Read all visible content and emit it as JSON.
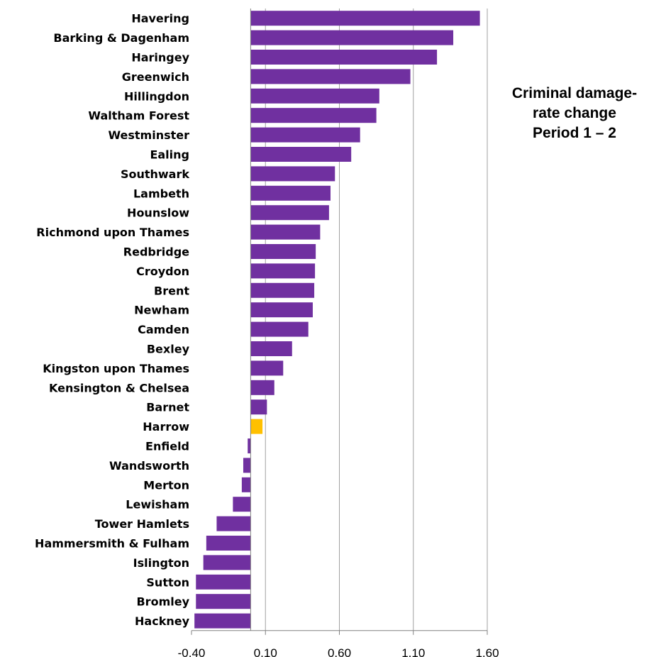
{
  "chart_data": {
    "type": "bar",
    "orientation": "horizontal",
    "title_lines": [
      "Criminal damage-",
      "rate change",
      "Period 1 – 2"
    ],
    "xlabel": "",
    "ylabel": "",
    "xlim": [
      -0.4,
      1.6
    ],
    "x_ticks": [
      -0.4,
      0.1,
      0.6,
      1.1,
      1.6
    ],
    "x_tick_labels": [
      "-0.40",
      "0.10",
      "0.60",
      "1.10",
      "1.60"
    ],
    "grid": "vertical",
    "categories": [
      "Havering",
      "Barking & Dagenham",
      "Haringey",
      "Greenwich",
      "Hillingdon",
      "Waltham Forest",
      "Westminster",
      "Ealing",
      "Southwark",
      "Lambeth",
      "Hounslow",
      "Richmond upon Thames",
      "Redbridge",
      "Croydon",
      "Brent",
      "Newham",
      "Camden",
      "Bexley",
      "Kingston upon Thames",
      "Kensington & Chelsea",
      "Barnet",
      "Harrow",
      "Enfield",
      "Wandsworth",
      "Merton",
      "Lewisham",
      "Tower Hamlets",
      "Hammersmith & Fulham",
      "Islington",
      "Sutton",
      "Bromley",
      "Hackney"
    ],
    "values": [
      1.55,
      1.37,
      1.26,
      1.08,
      0.87,
      0.85,
      0.74,
      0.68,
      0.57,
      0.54,
      0.53,
      0.47,
      0.44,
      0.435,
      0.43,
      0.42,
      0.39,
      0.28,
      0.22,
      0.16,
      0.11,
      0.08,
      -0.02,
      -0.05,
      -0.06,
      -0.12,
      -0.23,
      -0.3,
      -0.32,
      -0.37,
      -0.37,
      -0.38
    ],
    "colors": {
      "default": "#7030A0",
      "highlight": "#FFC000",
      "axis": "#808080",
      "grid": "#A0A0A0"
    },
    "highlight_category": "Harrow"
  }
}
